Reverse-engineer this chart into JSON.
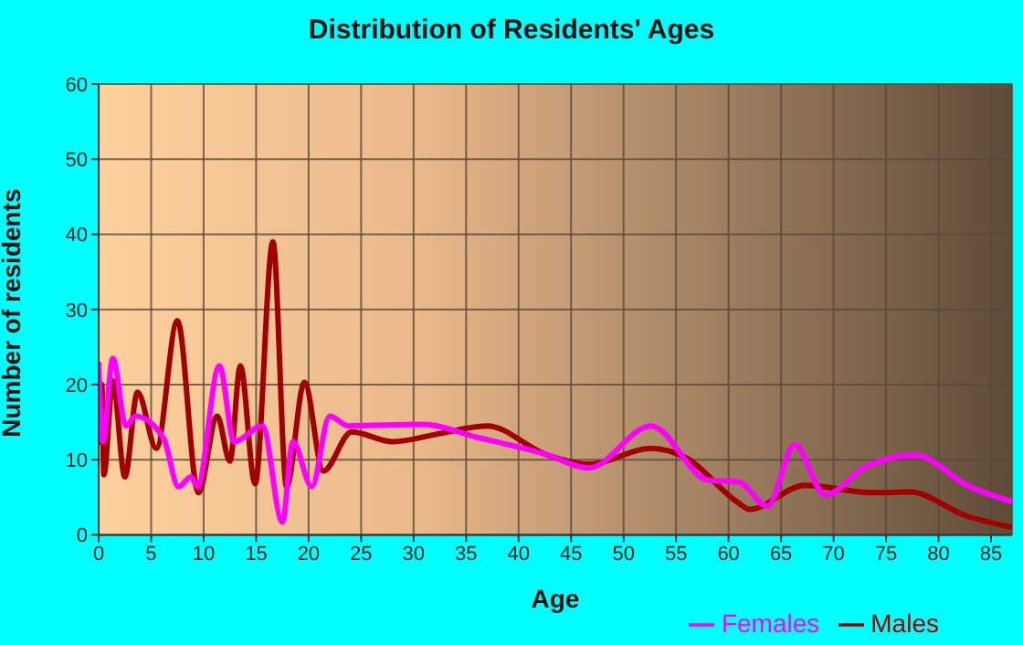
{
  "chart_data": {
    "type": "line",
    "title": "Distribution of Residents' Ages",
    "xlabel": "Age",
    "ylabel": "Number of residents",
    "xlim": [
      0,
      87
    ],
    "xticks": [
      0,
      5,
      10,
      15,
      20,
      25,
      30,
      35,
      40,
      45,
      50,
      55,
      60,
      65,
      70,
      75,
      80,
      85
    ],
    "ylim": [
      0,
      60
    ],
    "yticks": [
      0,
      10,
      20,
      30,
      40,
      50,
      60
    ],
    "grid": true,
    "legend": "bottom",
    "marker": "none",
    "line_style": "solid",
    "series": [
      {
        "name": "Males",
        "color": "#a00000",
        "x": [
          0,
          0.3,
          0.5,
          1.35,
          2.5,
          3.7,
          5.5,
          7.5,
          9.5,
          11.3,
          12.5,
          13.5,
          14.9,
          16.6,
          17.9,
          19.6,
          21.4,
          24.1,
          28,
          32.6,
          37,
          42.6,
          46.7,
          52.6,
          56,
          60.8,
          62,
          67.3,
          73.7,
          77.3,
          82.5,
          87
        ],
        "values": [
          12,
          20,
          8,
          20.5,
          7.7,
          19,
          11.5,
          28.5,
          5.6,
          15.8,
          9.8,
          22.5,
          6.8,
          39,
          6.4,
          20.3,
          8.5,
          13.7,
          12.4,
          13.5,
          14.5,
          10.7,
          9.4,
          11.5,
          10.2,
          4.4,
          3.4,
          6.6,
          5.6,
          5.7,
          2.6,
          1
        ]
      },
      {
        "name": "Females",
        "color": "#ff00ff",
        "x": [
          0,
          0.4,
          1.35,
          2.6,
          3.5,
          6.2,
          7.6,
          8.8,
          9.4,
          11.5,
          12.9,
          15.6,
          17.5,
          18.5,
          20.3,
          22,
          23.8,
          30.9,
          36,
          42.6,
          46.7,
          52.6,
          58,
          61,
          63.7,
          66.3,
          69.2,
          73,
          77.7,
          83,
          87
        ],
        "values": [
          23,
          12.4,
          23.5,
          14.5,
          15.8,
          12.8,
          6.4,
          7.7,
          6.4,
          22.5,
          12.4,
          14.5,
          1.7,
          12.4,
          6.4,
          15.8,
          14.5,
          14.7,
          13,
          10.7,
          8.9,
          14.5,
          7.3,
          7,
          3.8,
          12,
          5.3,
          9,
          10.6,
          6.4,
          4.4
        ]
      }
    ]
  }
}
